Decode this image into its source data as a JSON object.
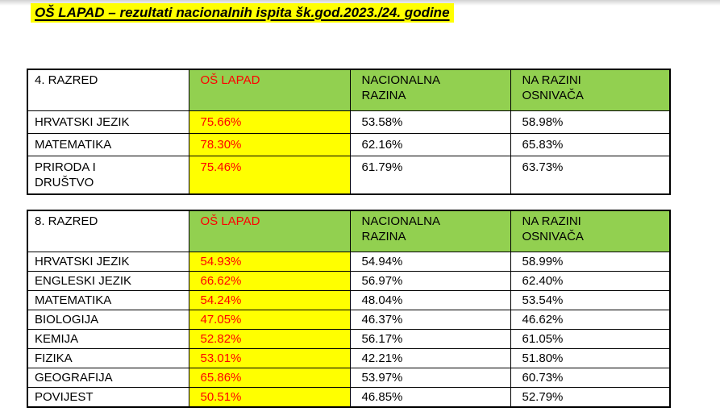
{
  "document": {
    "title": "OŠ LAPAD – rezultati nacionalnih ispita šk.god.2023./24. godine"
  },
  "colors": {
    "header_green": "#92d050",
    "highlight_yellow": "#ffff00",
    "accent_red": "#ff0000",
    "text_black": "#000000",
    "page_white": "#ffffff"
  },
  "tables": [
    {
      "grade_label": "4. RAZRED",
      "columns": [
        "OŠ LAPAD",
        "NACIONALNA\nRAZINA",
        "NA RAZINI\nOSNIVAČA"
      ],
      "rows": [
        {
          "subject": "HRVATSKI JEZIK",
          "school": "75.66%",
          "national": "53.58%",
          "founder": "58.98%"
        },
        {
          "subject": "MATEMATIKA",
          "school": "78.30%",
          "national": "62.16%",
          "founder": "65.83%"
        },
        {
          "subject": "PRIRODA I\nDRUŠTVO",
          "school": "75.46%",
          "national": "61.79%",
          "founder": "63.73%"
        }
      ]
    },
    {
      "grade_label": "8. RAZRED",
      "columns": [
        "OŠ LAPAD",
        "NACIONALNA\nRAZINA",
        "NA RAZINI\nOSNIVAČA"
      ],
      "rows": [
        {
          "subject": "HRVATSKI JEZIK",
          "school": "54.93%",
          "national": "54.94%",
          "founder": "58.99%"
        },
        {
          "subject": "ENGLESKI JEZIK",
          "school": "66.62%",
          "national": "56.97%",
          "founder": "62.40%"
        },
        {
          "subject": "MATEMATIKA",
          "school": "54.24%",
          "national": "48.04%",
          "founder": "53.54%"
        },
        {
          "subject": "BIOLOGIJA",
          "school": "47.05%",
          "national": "46.37%",
          "founder": "46.62%"
        },
        {
          "subject": "KEMIJA",
          "school": "52.82%",
          "national": "56.17%",
          "founder": "61.05%"
        },
        {
          "subject": "FIZIKA",
          "school": "53.01%",
          "national": "42.21%",
          "founder": "51.80%"
        },
        {
          "subject": "GEOGRAFIJA",
          "school": "65.86%",
          "national": "53.97%",
          "founder": "60.73%"
        },
        {
          "subject": "POVIJEST",
          "school": "50.51%",
          "national": "46.85%",
          "founder": "52.79%"
        }
      ]
    }
  ]
}
